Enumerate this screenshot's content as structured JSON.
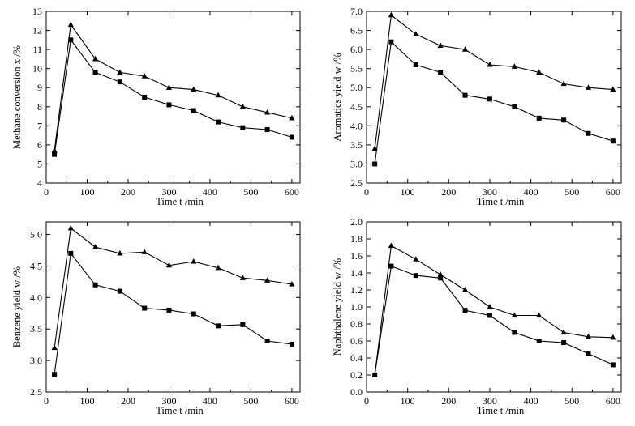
{
  "chart_data": [
    {
      "type": "line",
      "ylabel": "Methane conversion    x /%",
      "xlabel": "Time    t /min",
      "xlim": [
        0,
        620
      ],
      "ylim": [
        4,
        13
      ],
      "xticks": [
        0,
        100,
        200,
        300,
        400,
        500,
        600
      ],
      "yticks": [
        4,
        5,
        6,
        7,
        8,
        9,
        10,
        11,
        12,
        13
      ],
      "ytick_labels": [
        "4",
        "5",
        "6",
        "7",
        "8",
        "9",
        "10",
        "11",
        "12",
        "13"
      ],
      "grid": false,
      "series": [
        {
          "marker": "triangle",
          "x": [
            20,
            60,
            120,
            180,
            240,
            300,
            360,
            420,
            480,
            540,
            600
          ],
          "values": [
            5.7,
            12.3,
            10.5,
            9.8,
            9.6,
            9.0,
            8.9,
            8.6,
            8.0,
            7.7,
            7.4
          ]
        },
        {
          "marker": "square",
          "x": [
            20,
            60,
            120,
            180,
            240,
            300,
            360,
            420,
            480,
            540,
            600
          ],
          "values": [
            5.5,
            11.5,
            9.8,
            9.3,
            8.5,
            8.1,
            7.8,
            7.2,
            6.9,
            6.8,
            6.4
          ]
        }
      ]
    },
    {
      "type": "line",
      "ylabel": "Aromatics yield    w /%",
      "xlabel": "Time    t /min",
      "xlim": [
        0,
        620
      ],
      "ylim": [
        2.5,
        7.0
      ],
      "xticks": [
        0,
        100,
        200,
        300,
        400,
        500,
        600
      ],
      "yticks": [
        2.5,
        3.0,
        3.5,
        4.0,
        4.5,
        5.0,
        5.5,
        6.0,
        6.5,
        7.0
      ],
      "ytick_labels": [
        "2.5",
        "3.0",
        "3.5",
        "4.0",
        "4.5",
        "5.0",
        "5.5",
        "6.0",
        "6.5",
        "7.0"
      ],
      "grid": false,
      "series": [
        {
          "marker": "triangle",
          "x": [
            20,
            60,
            120,
            180,
            240,
            300,
            360,
            420,
            480,
            540,
            600
          ],
          "values": [
            3.4,
            6.9,
            6.4,
            6.1,
            6.0,
            5.6,
            5.55,
            5.4,
            5.1,
            5.0,
            4.95
          ]
        },
        {
          "marker": "square",
          "x": [
            20,
            60,
            120,
            180,
            240,
            300,
            360,
            420,
            480,
            540,
            600
          ],
          "values": [
            3.0,
            6.2,
            5.6,
            5.4,
            4.8,
            4.7,
            4.5,
            4.2,
            4.15,
            3.8,
            3.6
          ]
        }
      ]
    },
    {
      "type": "line",
      "ylabel": "Benzene  yield    w /%",
      "xlabel": "Time    t /min",
      "xlim": [
        0,
        620
      ],
      "ylim": [
        2.5,
        5.2
      ],
      "xticks": [
        0,
        100,
        200,
        300,
        400,
        500,
        600
      ],
      "yticks": [
        2.5,
        3.0,
        3.5,
        4.0,
        4.5,
        5.0
      ],
      "ytick_labels": [
        "2.5",
        "3.0",
        "3.5",
        "4.0",
        "4.5",
        "5.0"
      ],
      "grid": false,
      "series": [
        {
          "marker": "triangle",
          "x": [
            20,
            60,
            120,
            180,
            240,
            300,
            360,
            420,
            480,
            540,
            600
          ],
          "values": [
            3.2,
            5.1,
            4.8,
            4.7,
            4.72,
            4.51,
            4.57,
            4.47,
            4.31,
            4.27,
            4.21
          ]
        },
        {
          "marker": "square",
          "x": [
            20,
            60,
            120,
            180,
            240,
            300,
            360,
            420,
            480,
            540,
            600
          ],
          "values": [
            2.78,
            4.7,
            4.2,
            4.1,
            3.83,
            3.8,
            3.74,
            3.55,
            3.57,
            3.31,
            3.26
          ]
        }
      ]
    },
    {
      "type": "line",
      "ylabel": "Naphthalene yield    w /%",
      "xlabel": "Time    t /min",
      "xlim": [
        0,
        620
      ],
      "ylim": [
        0.0,
        2.0
      ],
      "xticks": [
        0,
        100,
        200,
        300,
        400,
        500,
        600
      ],
      "yticks": [
        0.0,
        0.2,
        0.4,
        0.6,
        0.8,
        1.0,
        1.2,
        1.4,
        1.6,
        1.8,
        2.0
      ],
      "ytick_labels": [
        "0.0",
        "0.2",
        "0.4",
        "0.6",
        "0.8",
        "1.0",
        "1.2",
        "1.4",
        "1.6",
        "1.8",
        "2.0"
      ],
      "grid": false,
      "series": [
        {
          "marker": "triangle",
          "x": [
            20,
            60,
            120,
            180,
            240,
            300,
            360,
            420,
            480,
            540,
            600
          ],
          "values": [
            0.2,
            1.72,
            1.56,
            1.38,
            1.2,
            1.0,
            0.9,
            0.9,
            0.7,
            0.65,
            0.64
          ]
        },
        {
          "marker": "square",
          "x": [
            20,
            60,
            120,
            180,
            240,
            300,
            360,
            420,
            480,
            540,
            600
          ],
          "values": [
            0.2,
            1.48,
            1.37,
            1.34,
            0.96,
            0.9,
            0.7,
            0.6,
            0.58,
            0.45,
            0.32
          ]
        }
      ]
    }
  ]
}
